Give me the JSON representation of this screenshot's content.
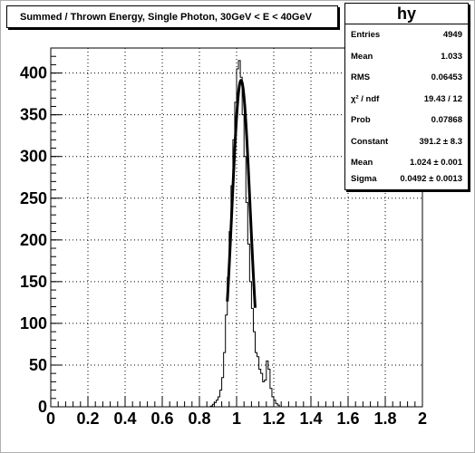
{
  "title": "Summed / Thrown Energy, Single Photon, 30GeV < E < 40GeV",
  "stats": {
    "name": "hy",
    "rows": [
      {
        "label": "Entries",
        "value": "4949"
      },
      {
        "label": "Mean",
        "value": "1.033"
      },
      {
        "label": "RMS",
        "value": "0.06453"
      },
      {
        "label": "χ² / ndf",
        "value": "19.43 / 12"
      },
      {
        "label": "Prob",
        "value": "0.07868"
      },
      {
        "label": "Constant",
        "value": "391.2 ± 8.3"
      },
      {
        "label": "Mean",
        "value": "1.024 ± 0.001"
      },
      {
        "label": "Sigma",
        "value": "0.0492 ± 0.0013"
      }
    ]
  },
  "chart_data": {
    "type": "histogram",
    "xlim": [
      0,
      2
    ],
    "ylim": [
      0,
      430
    ],
    "xticks": [
      "0",
      "0.2",
      "0.4",
      "0.6",
      "0.8",
      "1",
      "1.2",
      "1.4",
      "1.6",
      "1.8",
      "2"
    ],
    "yticks": [
      "0",
      "50",
      "100",
      "150",
      "200",
      "250",
      "300",
      "350",
      "400"
    ],
    "grid": true,
    "bin_width": 0.01,
    "histogram": {
      "bin_lows": [
        0.86,
        0.87,
        0.88,
        0.89,
        0.9,
        0.91,
        0.92,
        0.93,
        0.94,
        0.95,
        0.96,
        0.97,
        0.98,
        0.99,
        1.0,
        1.01,
        1.02,
        1.03,
        1.04,
        1.05,
        1.06,
        1.07,
        1.08,
        1.09,
        1.1,
        1.11,
        1.12,
        1.13,
        1.14,
        1.15,
        1.16,
        1.17,
        1.18,
        1.19,
        1.2,
        1.21,
        1.22
      ],
      "counts": [
        1,
        3,
        5,
        8,
        12,
        20,
        35,
        65,
        110,
        155,
        210,
        265,
        320,
        365,
        405,
        415,
        395,
        350,
        300,
        245,
        195,
        150,
        118,
        90,
        65,
        60,
        45,
        40,
        30,
        32,
        55,
        45,
        22,
        12,
        8,
        4,
        2
      ]
    },
    "fit": {
      "function": "gaus",
      "constant": 391.2,
      "mean": 1.024,
      "sigma": 0.0492,
      "range": [
        0.95,
        1.1
      ]
    }
  }
}
